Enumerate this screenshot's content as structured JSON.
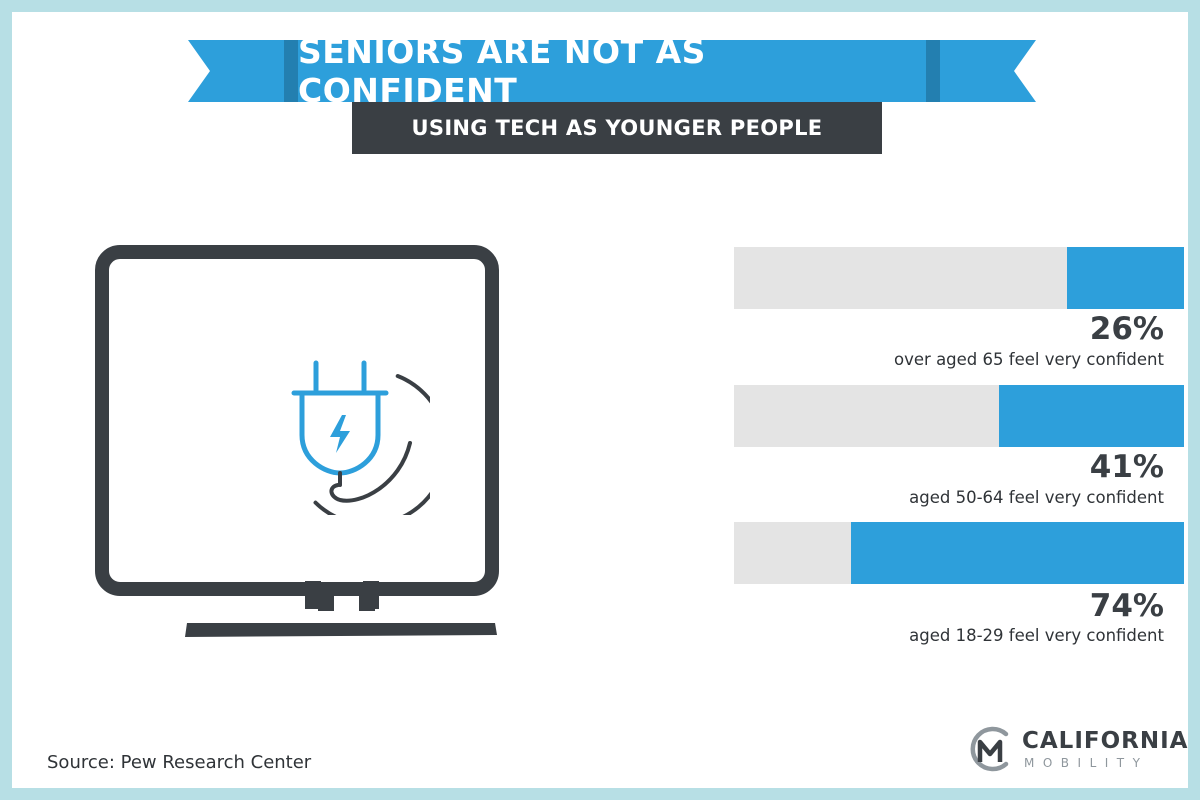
{
  "header": {
    "title": "SENIORS ARE NOT AS CONFIDENT",
    "subtitle": "USING TECH AS YOUNGER PEOPLE"
  },
  "illustration": {
    "monitor_icon": "monitor-icon",
    "plug_icon": "electric-plug-icon"
  },
  "colors": {
    "accent": "#2d9fdb",
    "dark": "#3a3f44",
    "track": "#e4e4e4",
    "frame": "#b7dfe5"
  },
  "chart_data": {
    "type": "bar",
    "orientation": "horizontal",
    "scale": [
      0,
      100
    ],
    "rows": [
      {
        "value": 26,
        "value_label": "26%",
        "caption": "over aged 65  feel very confident"
      },
      {
        "value": 41,
        "value_label": "41%",
        "caption": "aged 50-64  feel very confident"
      },
      {
        "value": 74,
        "value_label": "74%",
        "caption": "aged 18-29  feel very confident"
      }
    ]
  },
  "footer": {
    "source": "Source: Pew Research Center",
    "logo_name": "CALIFORNIA",
    "logo_sub": "MOBILITY",
    "logo_icon": "california-mobility-logo-icon"
  }
}
